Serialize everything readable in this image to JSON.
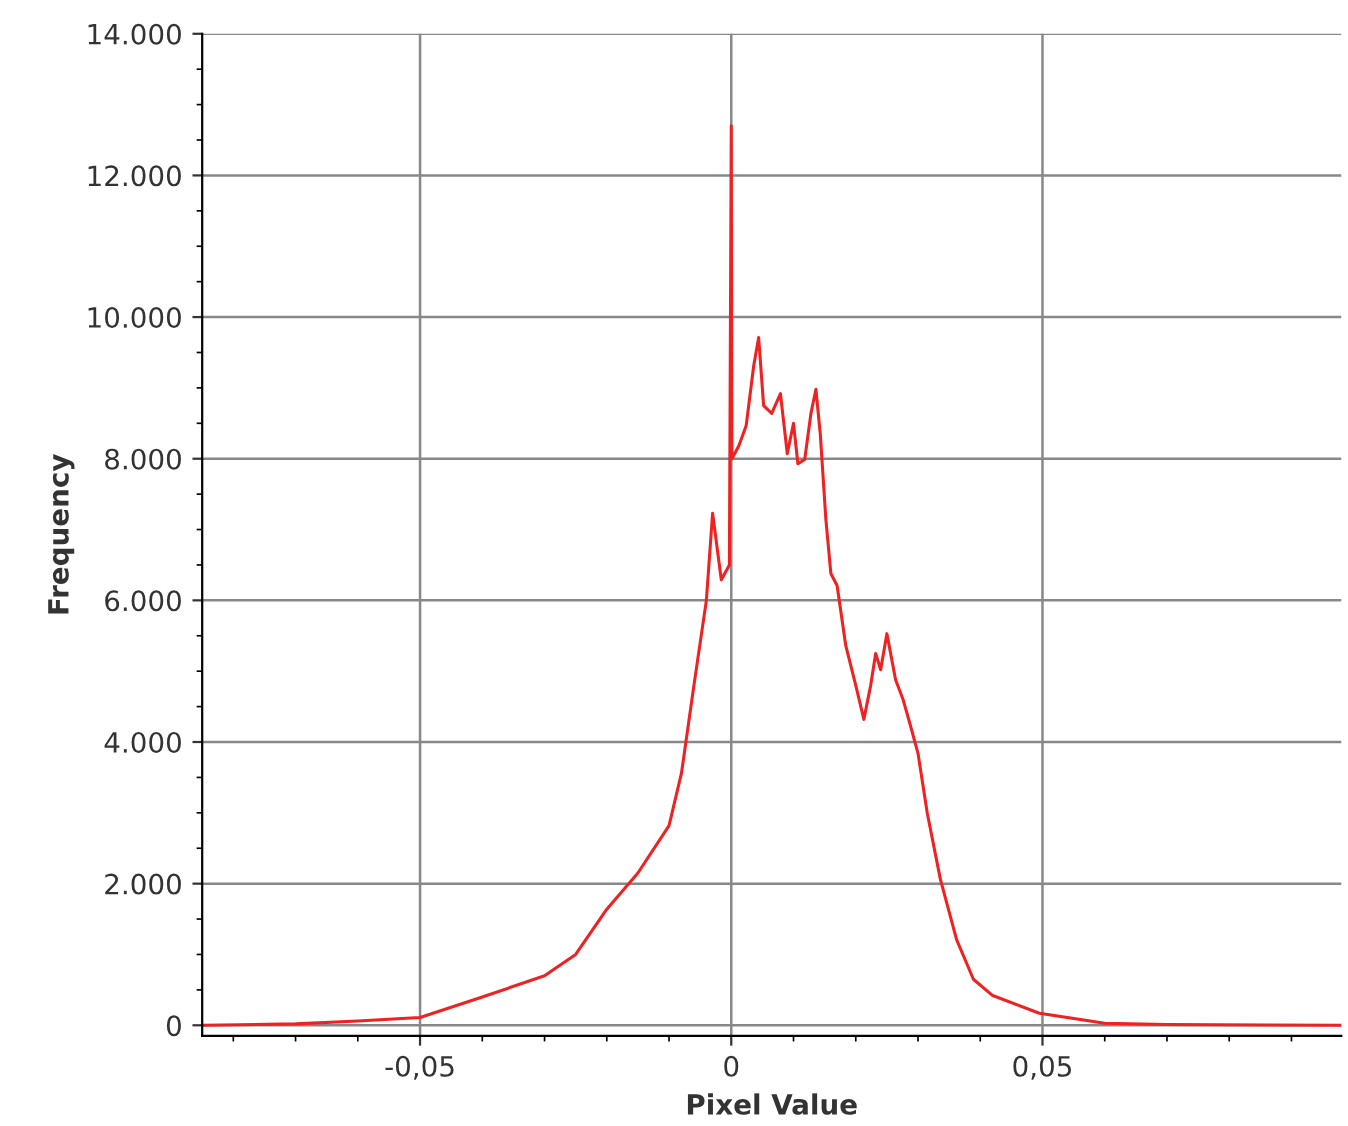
{
  "chart_data": {
    "type": "line",
    "xlabel": "Pixel Value",
    "ylabel": "Frequency",
    "xlim": [
      -0.085,
      0.098
    ],
    "ylim": [
      -150,
      14000
    ],
    "xticks": [
      {
        "value": -0.05,
        "label": "-0,05"
      },
      {
        "value": 0,
        "label": "0"
      },
      {
        "value": 0.05,
        "label": "0,05"
      }
    ],
    "yticks": [
      0,
      {
        "value": 2000,
        "label": "2.000"
      },
      {
        "value": 4000,
        "label": "4.000"
      },
      {
        "value": 6000,
        "label": "6.000"
      },
      {
        "value": 8000,
        "label": "8.000"
      },
      {
        "value": 10000,
        "label": "10.000"
      },
      {
        "value": 12000,
        "label": "12.000"
      },
      {
        "value": 14000,
        "label": "14.000"
      }
    ],
    "grid": true,
    "legend": false,
    "marker": "none",
    "line_style": "solid",
    "series": [
      {
        "color": "#ee2222",
        "x": [
          -0.085,
          -0.07,
          -0.06,
          -0.05,
          -0.04,
          -0.03,
          -0.025,
          -0.02,
          -0.015,
          -0.01,
          -0.008,
          -0.006,
          -0.004,
          -0.003,
          -0.0016,
          -0.0003,
          0,
          0.0001,
          0.0012,
          0.0024,
          0.0036,
          0.0044,
          0.0052,
          0.0065,
          0.0079,
          0.009,
          0.01,
          0.0107,
          0.0118,
          0.0128,
          0.0136,
          0.0143,
          0.0152,
          0.016,
          0.017,
          0.0184,
          0.02,
          0.0213,
          0.0224,
          0.0232,
          0.024,
          0.025,
          0.0264,
          0.0276,
          0.0287,
          0.03,
          0.0315,
          0.0336,
          0.0362,
          0.0389,
          0.042,
          0.0495,
          0.06,
          0.07,
          0.098
        ],
        "values": [
          0,
          20,
          60,
          110,
          400,
          700,
          1000,
          1640,
          2150,
          2820,
          3560,
          4800,
          6000,
          7230,
          6290,
          6500,
          12700,
          8000,
          8180,
          8470,
          9310,
          9710,
          8750,
          8640,
          8920,
          8070,
          8500,
          7930,
          7990,
          8640,
          8980,
          8350,
          7140,
          6380,
          6210,
          5360,
          4800,
          4320,
          4800,
          5250,
          5020,
          5530,
          4880,
          4600,
          4260,
          3840,
          2990,
          2060,
          1210,
          650,
          420,
          170,
          30,
          10,
          0
        ]
      }
    ]
  }
}
